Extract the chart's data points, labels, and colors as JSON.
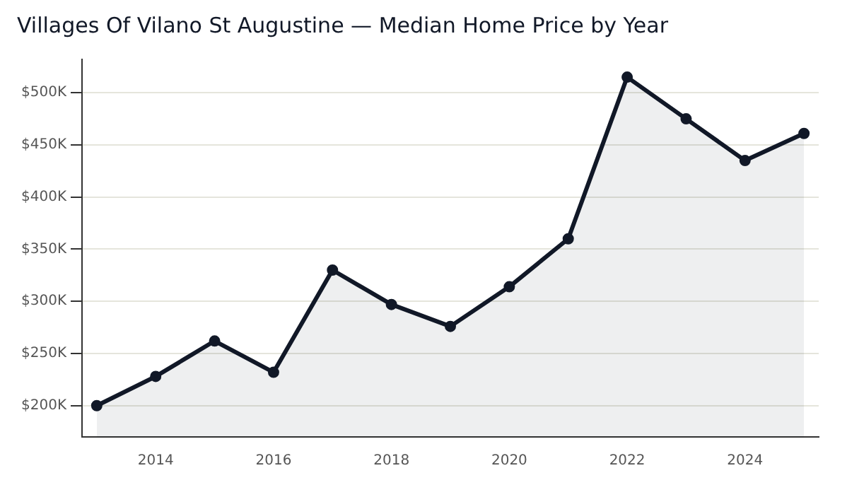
{
  "chart_data": {
    "type": "area",
    "title": "Villages Of Vilano St Augustine — Median Home Price by Year",
    "x": [
      2013,
      2014,
      2015,
      2016,
      2017,
      2018,
      2019,
      2020,
      2021,
      2022,
      2023,
      2024,
      2025
    ],
    "series": [
      {
        "color": "#111827",
        "values": [
          200000,
          228000,
          262000,
          232000,
          330000,
          297000,
          276000,
          314000,
          360000,
          515000,
          475000,
          435000,
          461000
        ]
      }
    ],
    "xlim": [
      2012.75,
      2025.25
    ],
    "xticks": [
      2014,
      2016,
      2018,
      2020,
      2022,
      2024
    ],
    "ylim": [
      170000,
      532000
    ],
    "yticks": [
      {
        "value": 200000,
        "label": "$200K"
      },
      {
        "value": 250000,
        "label": "$250K"
      },
      {
        "value": 300000,
        "label": "$300K"
      },
      {
        "value": 350000,
        "label": "$350K"
      },
      {
        "value": 400000,
        "label": "$400K"
      },
      {
        "value": 450000,
        "label": "$450K"
      },
      {
        "value": 500000,
        "label": "$500K"
      }
    ],
    "grid": "y",
    "marker": "circle",
    "legend": false
  }
}
